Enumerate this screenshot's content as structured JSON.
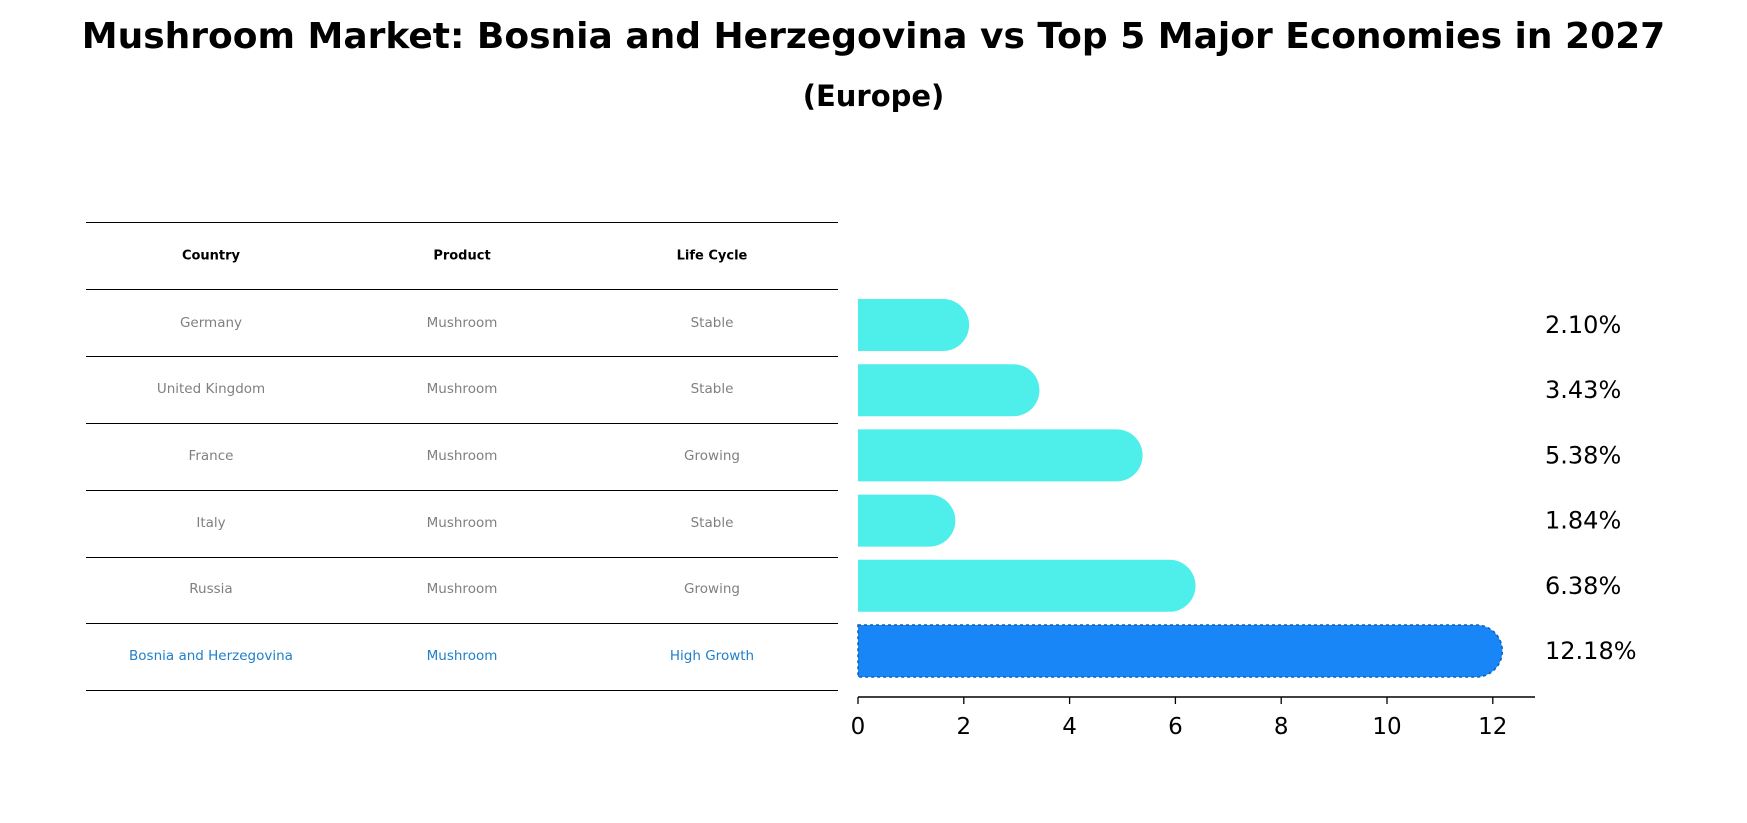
{
  "chart_data": {
    "type": "bar",
    "orientation": "horizontal",
    "title": "Mushroom Market: Bosnia and Herzegovina vs Top 5 Major Economies in 2027",
    "subtitle": "(Europe)",
    "categories": [
      "Germany",
      "United Kingdom",
      "France",
      "Italy",
      "Russia",
      "Bosnia and Herzegovina"
    ],
    "values": [
      2.1,
      3.43,
      5.38,
      1.84,
      6.38,
      12.18
    ],
    "value_labels": [
      "2.10%",
      "3.43%",
      "5.38%",
      "1.84%",
      "6.38%",
      "12.18%"
    ],
    "xlim": [
      0,
      12.8
    ],
    "xticks": [
      0,
      2,
      4,
      6,
      8,
      10,
      12
    ],
    "xtick_labels": [
      "0",
      "2",
      "4",
      "6",
      "8",
      "10",
      "12"
    ],
    "highlight_index": 5,
    "grid": false,
    "colors": {
      "bar": "#4eeeea",
      "highlight_bar": "#1886f7",
      "highlight_text": "#1f7fc9",
      "muted_text": "#808080"
    }
  },
  "table": {
    "headers": [
      "Country",
      "Product",
      "Life Cycle"
    ],
    "rows": [
      [
        "Germany",
        "Mushroom",
        "Stable"
      ],
      [
        "United Kingdom",
        "Mushroom",
        "Stable"
      ],
      [
        "France",
        "Mushroom",
        "Growing"
      ],
      [
        "Italy",
        "Mushroom",
        "Stable"
      ],
      [
        "Russia",
        "Mushroom",
        "Growing"
      ],
      [
        "Bosnia and Herzegovina",
        "Mushroom",
        "High Growth"
      ]
    ]
  }
}
